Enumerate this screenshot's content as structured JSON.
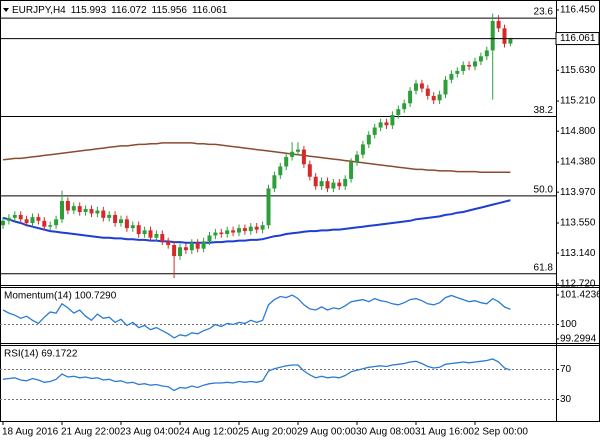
{
  "chart_data": [
    {
      "type": "candlestick",
      "symbol": "EURJPY,H4",
      "categories": [
        "18 Aug 2016",
        null,
        null,
        null,
        null,
        null,
        null,
        null,
        null,
        null,
        "21 Aug 22:00",
        null,
        null,
        null,
        null,
        null,
        null,
        null,
        null,
        null,
        "23 Aug 04:00",
        null,
        null,
        null,
        null,
        null,
        null,
        null,
        null,
        null,
        "24 Aug 12:00",
        null,
        null,
        null,
        null,
        null,
        null,
        null,
        null,
        null,
        "25 Aug 20:00",
        null,
        null,
        null,
        null,
        null,
        null,
        null,
        null,
        null,
        "29 Aug 00:00",
        null,
        null,
        null,
        null,
        null,
        null,
        null,
        null,
        null,
        "30 Aug 08:00",
        null,
        null,
        null,
        null,
        null,
        null,
        null,
        null,
        null,
        "31 Aug 16:00",
        null,
        null,
        null,
        null,
        null,
        null,
        null,
        null,
        null,
        "2 Sep 00:00",
        null,
        null,
        null,
        null,
        null,
        null
      ],
      "open": [
        113.52,
        113.58,
        113.62,
        113.66,
        113.6,
        113.55,
        113.63,
        113.58,
        113.5,
        113.52,
        113.6,
        113.85,
        113.72,
        113.78,
        113.7,
        113.74,
        113.68,
        113.72,
        113.62,
        113.66,
        113.55,
        113.6,
        113.48,
        113.52,
        113.4,
        113.45,
        113.35,
        113.4,
        113.3,
        113.25,
        113.1,
        113.22,
        113.18,
        113.28,
        113.2,
        113.3,
        113.38,
        113.42,
        113.4,
        113.45,
        113.42,
        113.48,
        113.44,
        113.5,
        113.46,
        113.52,
        114.02,
        114.2,
        114.32,
        114.45,
        114.52,
        114.55,
        114.35,
        114.18,
        114.05,
        114.12,
        114.02,
        114.1,
        114.05,
        114.15,
        114.38,
        114.48,
        114.62,
        114.75,
        114.85,
        114.92,
        114.88,
        115.02,
        115.1,
        115.18,
        115.35,
        115.45,
        115.38,
        115.28,
        115.22,
        115.3,
        115.5,
        115.58,
        115.62,
        115.7,
        115.68,
        115.75,
        115.82,
        115.9,
        116.3,
        116.2,
        115.993
      ],
      "high": [
        113.63,
        113.67,
        113.71,
        113.71,
        113.65,
        113.68,
        113.68,
        113.63,
        113.57,
        113.65,
        113.99,
        113.9,
        113.83,
        113.83,
        113.79,
        113.79,
        113.77,
        113.77,
        113.71,
        113.71,
        113.65,
        113.65,
        113.57,
        113.57,
        113.5,
        113.5,
        113.45,
        113.45,
        113.35,
        113.3,
        113.27,
        113.27,
        113.33,
        113.33,
        113.35,
        113.43,
        113.47,
        113.47,
        113.5,
        113.5,
        113.53,
        113.53,
        113.55,
        113.55,
        113.57,
        114.07,
        114.25,
        114.37,
        114.5,
        114.65,
        114.65,
        114.6,
        114.4,
        114.23,
        114.17,
        114.17,
        114.15,
        114.15,
        114.2,
        114.43,
        114.53,
        114.67,
        114.8,
        114.9,
        114.97,
        114.97,
        115.07,
        115.15,
        115.23,
        115.4,
        115.5,
        115.5,
        115.43,
        115.33,
        115.35,
        115.55,
        115.63,
        115.67,
        115.75,
        115.75,
        115.8,
        115.87,
        115.95,
        116.4,
        116.38,
        116.25,
        116.072
      ],
      "low": [
        113.47,
        113.53,
        113.57,
        113.55,
        113.5,
        113.5,
        113.53,
        113.45,
        113.45,
        113.47,
        113.55,
        113.67,
        113.67,
        113.65,
        113.65,
        113.63,
        113.63,
        113.57,
        113.57,
        113.5,
        113.5,
        113.43,
        113.43,
        113.35,
        113.35,
        113.3,
        113.3,
        113.25,
        113.2,
        112.8,
        113.05,
        113.13,
        113.13,
        113.15,
        113.15,
        113.25,
        113.33,
        113.35,
        113.35,
        113.37,
        113.37,
        113.39,
        113.39,
        113.41,
        113.41,
        113.47,
        113.97,
        114.15,
        114.27,
        114.4,
        114.47,
        114.3,
        114.13,
        114.0,
        114.0,
        113.97,
        113.97,
        114.0,
        114.0,
        114.1,
        114.33,
        114.43,
        114.57,
        114.7,
        114.8,
        114.83,
        114.83,
        114.97,
        115.05,
        115.13,
        115.3,
        115.33,
        115.23,
        115.17,
        115.17,
        115.25,
        115.45,
        115.53,
        115.57,
        115.63,
        115.63,
        115.7,
        115.77,
        115.23,
        116.15,
        115.94,
        115.956
      ],
      "close": [
        113.58,
        113.62,
        113.66,
        113.6,
        113.55,
        113.63,
        113.58,
        113.5,
        113.52,
        113.6,
        113.85,
        113.72,
        113.78,
        113.7,
        113.74,
        113.68,
        113.72,
        113.62,
        113.66,
        113.55,
        113.6,
        113.48,
        113.52,
        113.4,
        113.45,
        113.35,
        113.4,
        113.3,
        113.25,
        113.1,
        113.22,
        113.18,
        113.28,
        113.2,
        113.3,
        113.38,
        113.42,
        113.4,
        113.45,
        113.42,
        113.48,
        113.44,
        113.5,
        113.46,
        113.52,
        114.02,
        114.2,
        114.32,
        114.45,
        114.52,
        114.55,
        114.35,
        114.18,
        114.05,
        114.12,
        114.02,
        114.1,
        114.05,
        114.15,
        114.38,
        114.48,
        114.62,
        114.75,
        114.85,
        114.92,
        114.88,
        115.02,
        115.1,
        115.18,
        115.35,
        115.45,
        115.38,
        115.28,
        115.22,
        115.3,
        115.5,
        115.58,
        115.62,
        115.7,
        115.68,
        115.75,
        115.82,
        115.9,
        116.3,
        116.2,
        115.99,
        116.061
      ],
      "up_color": "#2e9e3a",
      "down_color": "#d42a2a",
      "series": [
        {
          "color": "#8c4a2f",
          "values": [
            114.41,
            114.42,
            114.43,
            114.43,
            114.44,
            114.45,
            114.46,
            114.47,
            114.48,
            114.49,
            114.5,
            114.51,
            114.52,
            114.53,
            114.54,
            114.55,
            114.56,
            114.57,
            114.58,
            114.59,
            114.6,
            114.6,
            114.61,
            114.62,
            114.62,
            114.63,
            114.63,
            114.64,
            114.64,
            114.64,
            114.64,
            114.64,
            114.64,
            114.63,
            114.63,
            114.62,
            114.62,
            114.61,
            114.6,
            114.59,
            114.58,
            114.57,
            114.56,
            114.55,
            114.54,
            114.53,
            114.52,
            114.51,
            114.5,
            114.49,
            114.48,
            114.47,
            114.46,
            114.45,
            114.44,
            114.43,
            114.42,
            114.41,
            114.4,
            114.39,
            114.38,
            114.37,
            114.36,
            114.35,
            114.34,
            114.33,
            114.32,
            114.31,
            114.3,
            114.29,
            114.28,
            114.28,
            114.27,
            114.27,
            114.26,
            114.26,
            114.26,
            114.25,
            114.25,
            114.25,
            114.25,
            114.24,
            114.24,
            114.24,
            114.24,
            114.24,
            114.24
          ]
        },
        {
          "color": "#1c3ed6",
          "values": [
            113.62,
            113.6,
            113.57,
            113.55,
            113.52,
            113.5,
            113.48,
            113.46,
            113.44,
            113.43,
            113.42,
            113.41,
            113.4,
            113.39,
            113.38,
            113.37,
            113.36,
            113.35,
            113.35,
            113.34,
            113.34,
            113.33,
            113.33,
            113.32,
            113.32,
            113.31,
            113.31,
            113.3,
            113.3,
            113.29,
            113.29,
            113.28,
            113.28,
            113.28,
            113.28,
            113.28,
            113.29,
            113.29,
            113.3,
            113.3,
            113.31,
            113.31,
            113.32,
            113.32,
            113.33,
            113.35,
            113.37,
            113.38,
            113.4,
            113.41,
            113.42,
            113.43,
            113.44,
            113.44,
            113.45,
            113.45,
            113.46,
            113.46,
            113.47,
            113.48,
            113.49,
            113.5,
            113.51,
            113.52,
            113.53,
            113.54,
            113.55,
            113.56,
            113.57,
            113.58,
            113.6,
            113.61,
            113.62,
            113.63,
            113.64,
            113.66,
            113.67,
            113.69,
            113.7,
            113.72,
            113.74,
            113.76,
            113.78,
            113.8,
            113.82,
            113.84,
            113.86
          ]
        }
      ],
      "levels": [
        {
          "name": "23.6",
          "value": 116.34
        },
        {
          "name": "38.2",
          "value": 115.0
        },
        {
          "name": "50.0",
          "value": 113.92
        },
        {
          "name": "61.8",
          "value": 112.86
        }
      ],
      "ylim": [
        112.706,
        116.586
      ],
      "yticks": [
        {
          "value": 116.45,
          "label": "116.450"
        },
        {
          "value": 115.63,
          "label": "115.630"
        },
        {
          "value": 115.21,
          "label": "115.210"
        },
        {
          "value": 114.8,
          "label": "114.800"
        },
        {
          "value": 114.38,
          "label": "114.380"
        },
        {
          "value": 113.97,
          "label": "113.970"
        },
        {
          "value": 113.55,
          "label": "113.550"
        },
        {
          "value": 113.14,
          "label": "113.140"
        },
        {
          "value": 112.72,
          "label": "112.720"
        }
      ]
    },
    {
      "type": "line",
      "title": "Momentum(14) 100.7290",
      "color": "#2b7bd6",
      "values": [
        100.7,
        100.55,
        100.45,
        100.3,
        100.4,
        100.2,
        100.05,
        100.35,
        100.6,
        100.55,
        101.0,
        100.8,
        100.55,
        100.7,
        100.4,
        100.2,
        100.5,
        100.3,
        100.35,
        100.1,
        100.25,
        99.95,
        100.1,
        99.85,
        99.95,
        99.75,
        99.85,
        99.7,
        99.55,
        99.35,
        99.5,
        99.45,
        99.6,
        99.55,
        99.7,
        99.8,
        100.0,
        99.9,
        100.05,
        100.0,
        100.1,
        100.05,
        100.2,
        100.1,
        100.2,
        100.95,
        101.2,
        101.35,
        101.3,
        101.42,
        101.25,
        100.95,
        100.75,
        100.7,
        100.85,
        100.7,
        100.8,
        100.75,
        100.9,
        101.1,
        101.15,
        101.2,
        101.1,
        101.25,
        101.15,
        101.1,
        101.0,
        100.95,
        101.05,
        101.2,
        101.25,
        101.15,
        101.0,
        100.95,
        101.05,
        101.3,
        101.4,
        101.3,
        101.2,
        101.1,
        101.15,
        101.05,
        101.0,
        101.25,
        101.1,
        100.85,
        100.729
      ],
      "ylim": [
        99.105,
        101.81
      ],
      "yticks": [
        101.4236,
        100,
        99.2994
      ],
      "hlines": [
        100
      ]
    },
    {
      "type": "line",
      "title": "RSI(14) 69.1722",
      "color": "#2b7bd6",
      "values": [
        57,
        58,
        59,
        56,
        55,
        58,
        56,
        53,
        54,
        57,
        64,
        60,
        61,
        59,
        60,
        58,
        59,
        56,
        57,
        54,
        55,
        52,
        53,
        50,
        51,
        49,
        50,
        48,
        47,
        42,
        46,
        45,
        48,
        46,
        49,
        51,
        52,
        52,
        53,
        52,
        54,
        53,
        54,
        53,
        55,
        68,
        71,
        73,
        75,
        76,
        76,
        68,
        63,
        59,
        61,
        59,
        60,
        59,
        62,
        67,
        69,
        71,
        73,
        74,
        75,
        74,
        76,
        77,
        78,
        80,
        81,
        78,
        74,
        72,
        73,
        77,
        78,
        79,
        80,
        79,
        80,
        81,
        82,
        84,
        80,
        72,
        69.1722
      ],
      "ylim": [
        1.33,
        102.67
      ],
      "yticks": [
        70,
        30
      ],
      "hlines": [
        70,
        30
      ]
    }
  ]
}
